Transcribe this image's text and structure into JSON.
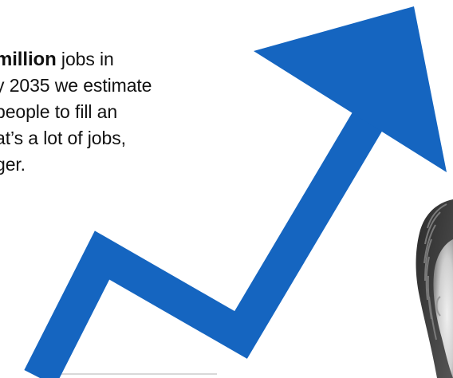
{
  "intro": {
    "line1_bold": "million",
    "line1_rest": " jobs in",
    "line2": "y 2035 we estimate",
    "line3": "people to fill an",
    "line4": "at’s a lot of jobs,",
    "line5": "ger."
  },
  "colors": {
    "arrow": "#1565c0",
    "text": "#111111",
    "background": "#ffffff"
  },
  "icons": {
    "arrow": "growth-arrow-icon"
  }
}
